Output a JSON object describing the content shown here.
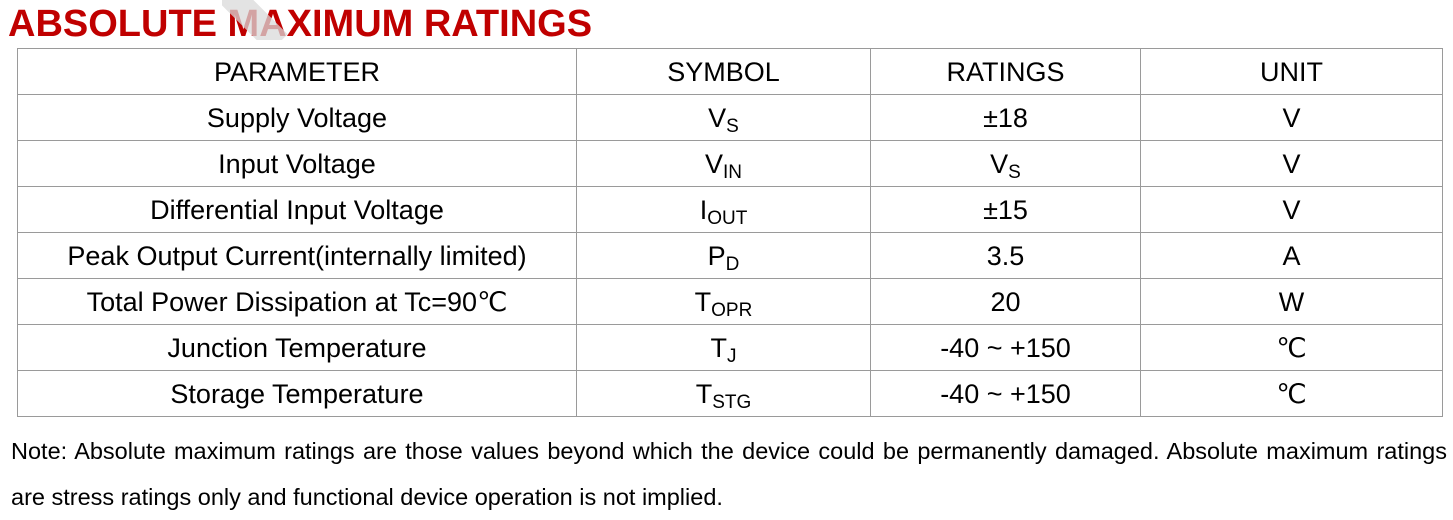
{
  "title": "ABSOLUTE MAXIMUM RATINGS",
  "colors": {
    "title": "#c00000",
    "border": "#9a9a9a",
    "watermark": "#d9d9d9"
  },
  "table": {
    "headers": {
      "parameter": "PARAMETER",
      "symbol": "SYMBOL",
      "ratings": "RATINGS",
      "unit": "UNIT"
    },
    "rows": [
      {
        "parameter": "Supply Voltage",
        "symbol": {
          "base": "V",
          "sub": "S"
        },
        "rating": {
          "base": "±18",
          "sub": ""
        },
        "unit": "V"
      },
      {
        "parameter": "Input Voltage",
        "symbol": {
          "base": "V",
          "sub": "IN"
        },
        "rating": {
          "base": "V",
          "sub": "S"
        },
        "unit": "V"
      },
      {
        "parameter": "Differential Input Voltage",
        "symbol": {
          "base": "I",
          "sub": "OUT"
        },
        "rating": {
          "base": "±15",
          "sub": ""
        },
        "unit": "V"
      },
      {
        "parameter": "Peak Output Current(internally limited)",
        "symbol": {
          "base": "P",
          "sub": "D"
        },
        "rating": {
          "base": "3.5",
          "sub": ""
        },
        "unit": "A"
      },
      {
        "parameter": "Total Power Dissipation at Tc=90℃",
        "symbol": {
          "base": "T",
          "sub": "OPR"
        },
        "rating": {
          "base": "20",
          "sub": ""
        },
        "unit": "W"
      },
      {
        "parameter": "Junction Temperature",
        "symbol": {
          "base": "T",
          "sub": "J"
        },
        "rating": {
          "base": "-40 ~ +150",
          "sub": ""
        },
        "unit": "℃"
      },
      {
        "parameter": "Storage Temperature",
        "symbol": {
          "base": "T",
          "sub": "STG"
        },
        "rating": {
          "base": "-40 ~ +150",
          "sub": ""
        },
        "unit": "℃"
      }
    ]
  },
  "note": "Note: Absolute maximum ratings are those values beyond which the device could be permanently damaged. Absolute maximum ratings are stress ratings only and functional device operation is not implied."
}
